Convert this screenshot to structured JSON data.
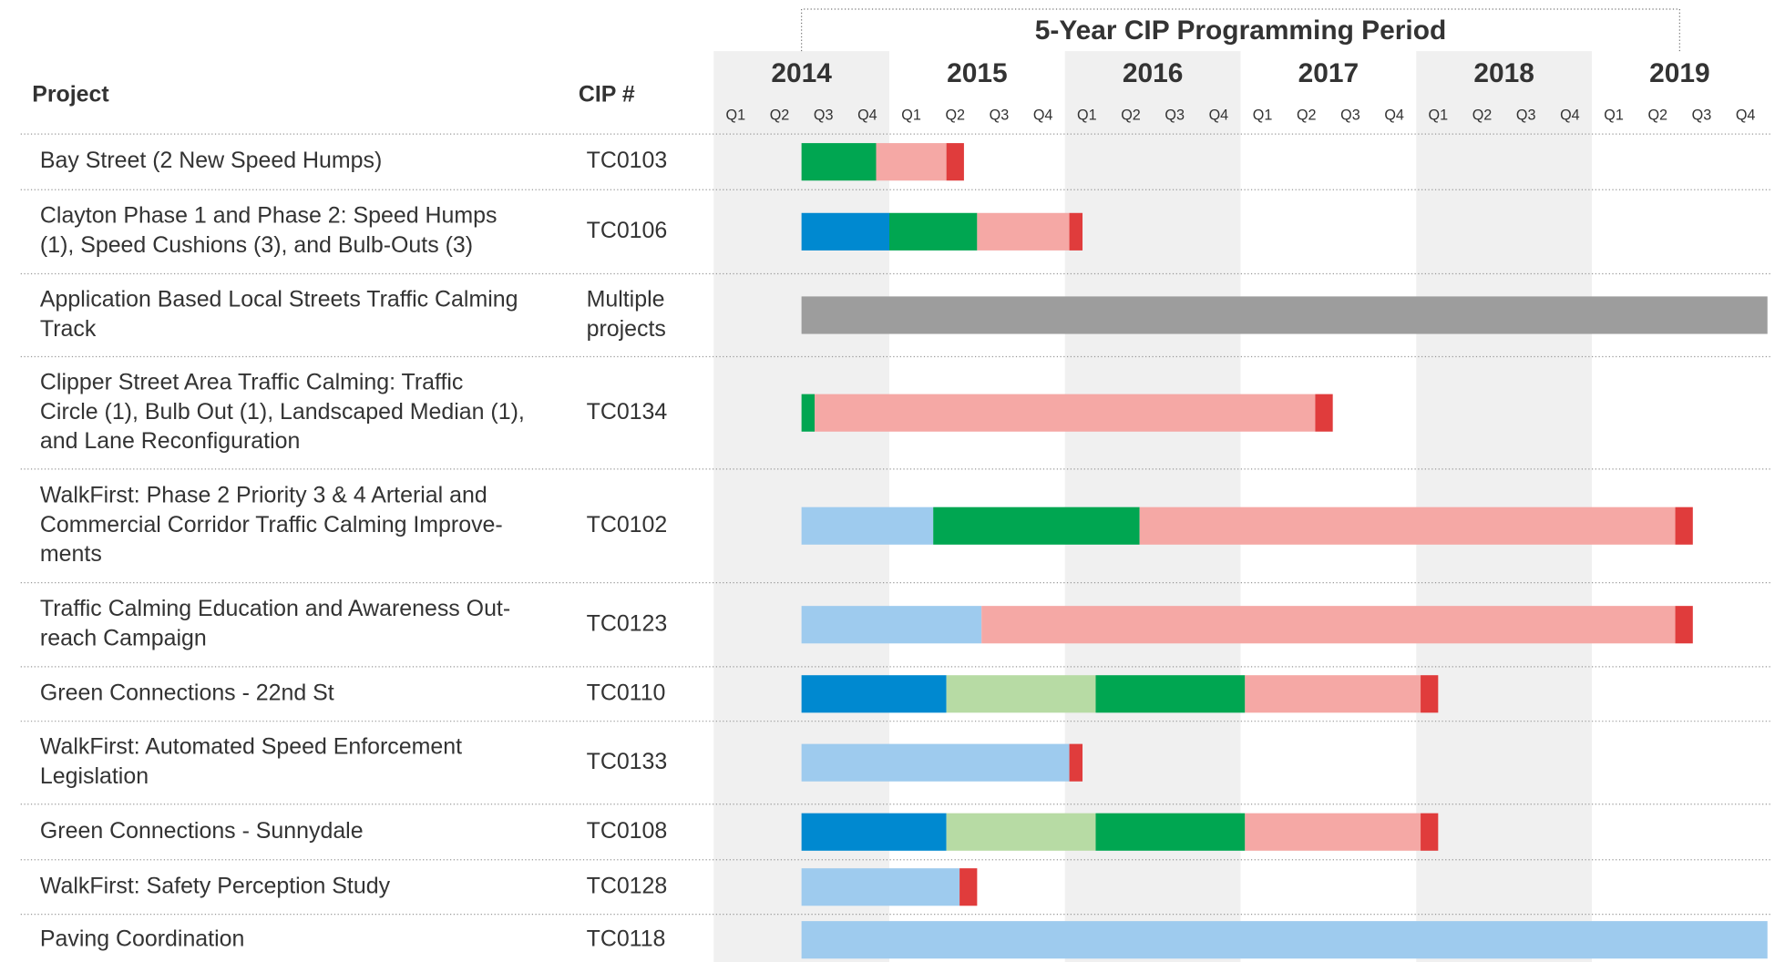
{
  "chart_data": {
    "type": "gantt",
    "headers": {
      "project": "Project",
      "cip": "CIP #"
    },
    "period": {
      "label": "5-Year CIP Programming Period",
      "start": 2,
      "end": 22
    },
    "years": [
      "2014",
      "2015",
      "2016",
      "2017",
      "2018",
      "2019"
    ],
    "quarters": [
      "Q1",
      "Q2",
      "Q3",
      "Q4"
    ],
    "xlim": [
      0,
      24
    ],
    "rows": [
      {
        "project": [
          "Bay Street (2 New Speed Humps)"
        ],
        "cip": [
          "TC0103"
        ],
        "segments": [
          {
            "start": 2,
            "end": 3.7,
            "color": "#00a651"
          },
          {
            "start": 3.7,
            "end": 5.3,
            "color": "#f5a8a5"
          },
          {
            "start": 5.3,
            "end": 5.7,
            "color": "#e03c3c"
          }
        ]
      },
      {
        "project": [
          "Clayton Phase 1 and Phase 2: Speed Humps",
          "(1), Speed Cushions (3), and Bulb-Outs (3)"
        ],
        "cip": [
          "TC0106"
        ],
        "segments": [
          {
            "start": 2,
            "end": 4,
            "color": "#0089d0"
          },
          {
            "start": 4,
            "end": 6,
            "color": "#00a651"
          },
          {
            "start": 6,
            "end": 8.1,
            "color": "#f5a8a5"
          },
          {
            "start": 8.1,
            "end": 8.4,
            "color": "#e03c3c"
          }
        ]
      },
      {
        "project": [
          "Application Based Local Streets Traffic Calming",
          "Track"
        ],
        "cip": [
          "Multiple",
          "projects"
        ],
        "segments": [
          {
            "start": 2,
            "end": 24,
            "color": "#9d9d9d"
          }
        ]
      },
      {
        "project": [
          "Clipper Street Area Traffic Calming: Traffic",
          "Circle (1), Bulb Out (1), Landscaped Median (1),",
          "and Lane Reconfiguration"
        ],
        "cip": [
          "TC0134"
        ],
        "segments": [
          {
            "start": 2,
            "end": 2.3,
            "color": "#00a651"
          },
          {
            "start": 2.3,
            "end": 13.7,
            "color": "#f5a8a5"
          },
          {
            "start": 13.7,
            "end": 14.1,
            "color": "#e03c3c"
          }
        ]
      },
      {
        "project": [
          "WalkFirst: Phase 2 Priority 3 & 4 Arterial and",
          "Commercial Corridor Traffic Calming Improve-",
          "ments"
        ],
        "cip": [
          "TC0102"
        ],
        "segments": [
          {
            "start": 2,
            "end": 5,
            "color": "#9ecbee"
          },
          {
            "start": 5,
            "end": 9.7,
            "color": "#00a651"
          },
          {
            "start": 9.7,
            "end": 21.9,
            "color": "#f5a8a5"
          },
          {
            "start": 21.9,
            "end": 22.3,
            "color": "#e03c3c"
          }
        ]
      },
      {
        "project": [
          "Traffic Calming Education and Awareness Out-",
          "reach Campaign"
        ],
        "cip": [
          "TC0123"
        ],
        "segments": [
          {
            "start": 2,
            "end": 6.1,
            "color": "#9ecbee"
          },
          {
            "start": 6.1,
            "end": 21.9,
            "color": "#f5a8a5"
          },
          {
            "start": 21.9,
            "end": 22.3,
            "color": "#e03c3c"
          }
        ]
      },
      {
        "project": [
          "Green Connections - 22nd St"
        ],
        "cip": [
          "TC0110"
        ],
        "segments": [
          {
            "start": 2,
            "end": 5.3,
            "color": "#0089d0"
          },
          {
            "start": 5.3,
            "end": 8.7,
            "color": "#b7dba4"
          },
          {
            "start": 8.7,
            "end": 12.1,
            "color": "#00a651"
          },
          {
            "start": 12.1,
            "end": 16.1,
            "color": "#f5a8a5"
          },
          {
            "start": 16.1,
            "end": 16.5,
            "color": "#e03c3c"
          }
        ]
      },
      {
        "project": [
          "WalkFirst: Automated Speed Enforcement",
          "Legislation"
        ],
        "cip": [
          "TC0133"
        ],
        "segments": [
          {
            "start": 2,
            "end": 8.1,
            "color": "#9ecbee"
          },
          {
            "start": 8.1,
            "end": 8.4,
            "color": "#e03c3c"
          }
        ]
      },
      {
        "project": [
          "Green Connections - Sunnydale"
        ],
        "cip": [
          "TC0108"
        ],
        "segments": [
          {
            "start": 2,
            "end": 5.3,
            "color": "#0089d0"
          },
          {
            "start": 5.3,
            "end": 8.7,
            "color": "#b7dba4"
          },
          {
            "start": 8.7,
            "end": 12.1,
            "color": "#00a651"
          },
          {
            "start": 12.1,
            "end": 16.1,
            "color": "#f5a8a5"
          },
          {
            "start": 16.1,
            "end": 16.5,
            "color": "#e03c3c"
          }
        ]
      },
      {
        "project": [
          "WalkFirst: Safety Perception Study"
        ],
        "cip": [
          "TC0128"
        ],
        "segments": [
          {
            "start": 2,
            "end": 5.6,
            "color": "#9ecbee"
          },
          {
            "start": 5.6,
            "end": 6,
            "color": "#e03c3c"
          }
        ]
      },
      {
        "project": [
          "Paving Coordination"
        ],
        "cip": [
          "TC0118"
        ],
        "segments": [
          {
            "start": 2,
            "end": 24,
            "color": "#9ecbee"
          }
        ]
      }
    ]
  }
}
